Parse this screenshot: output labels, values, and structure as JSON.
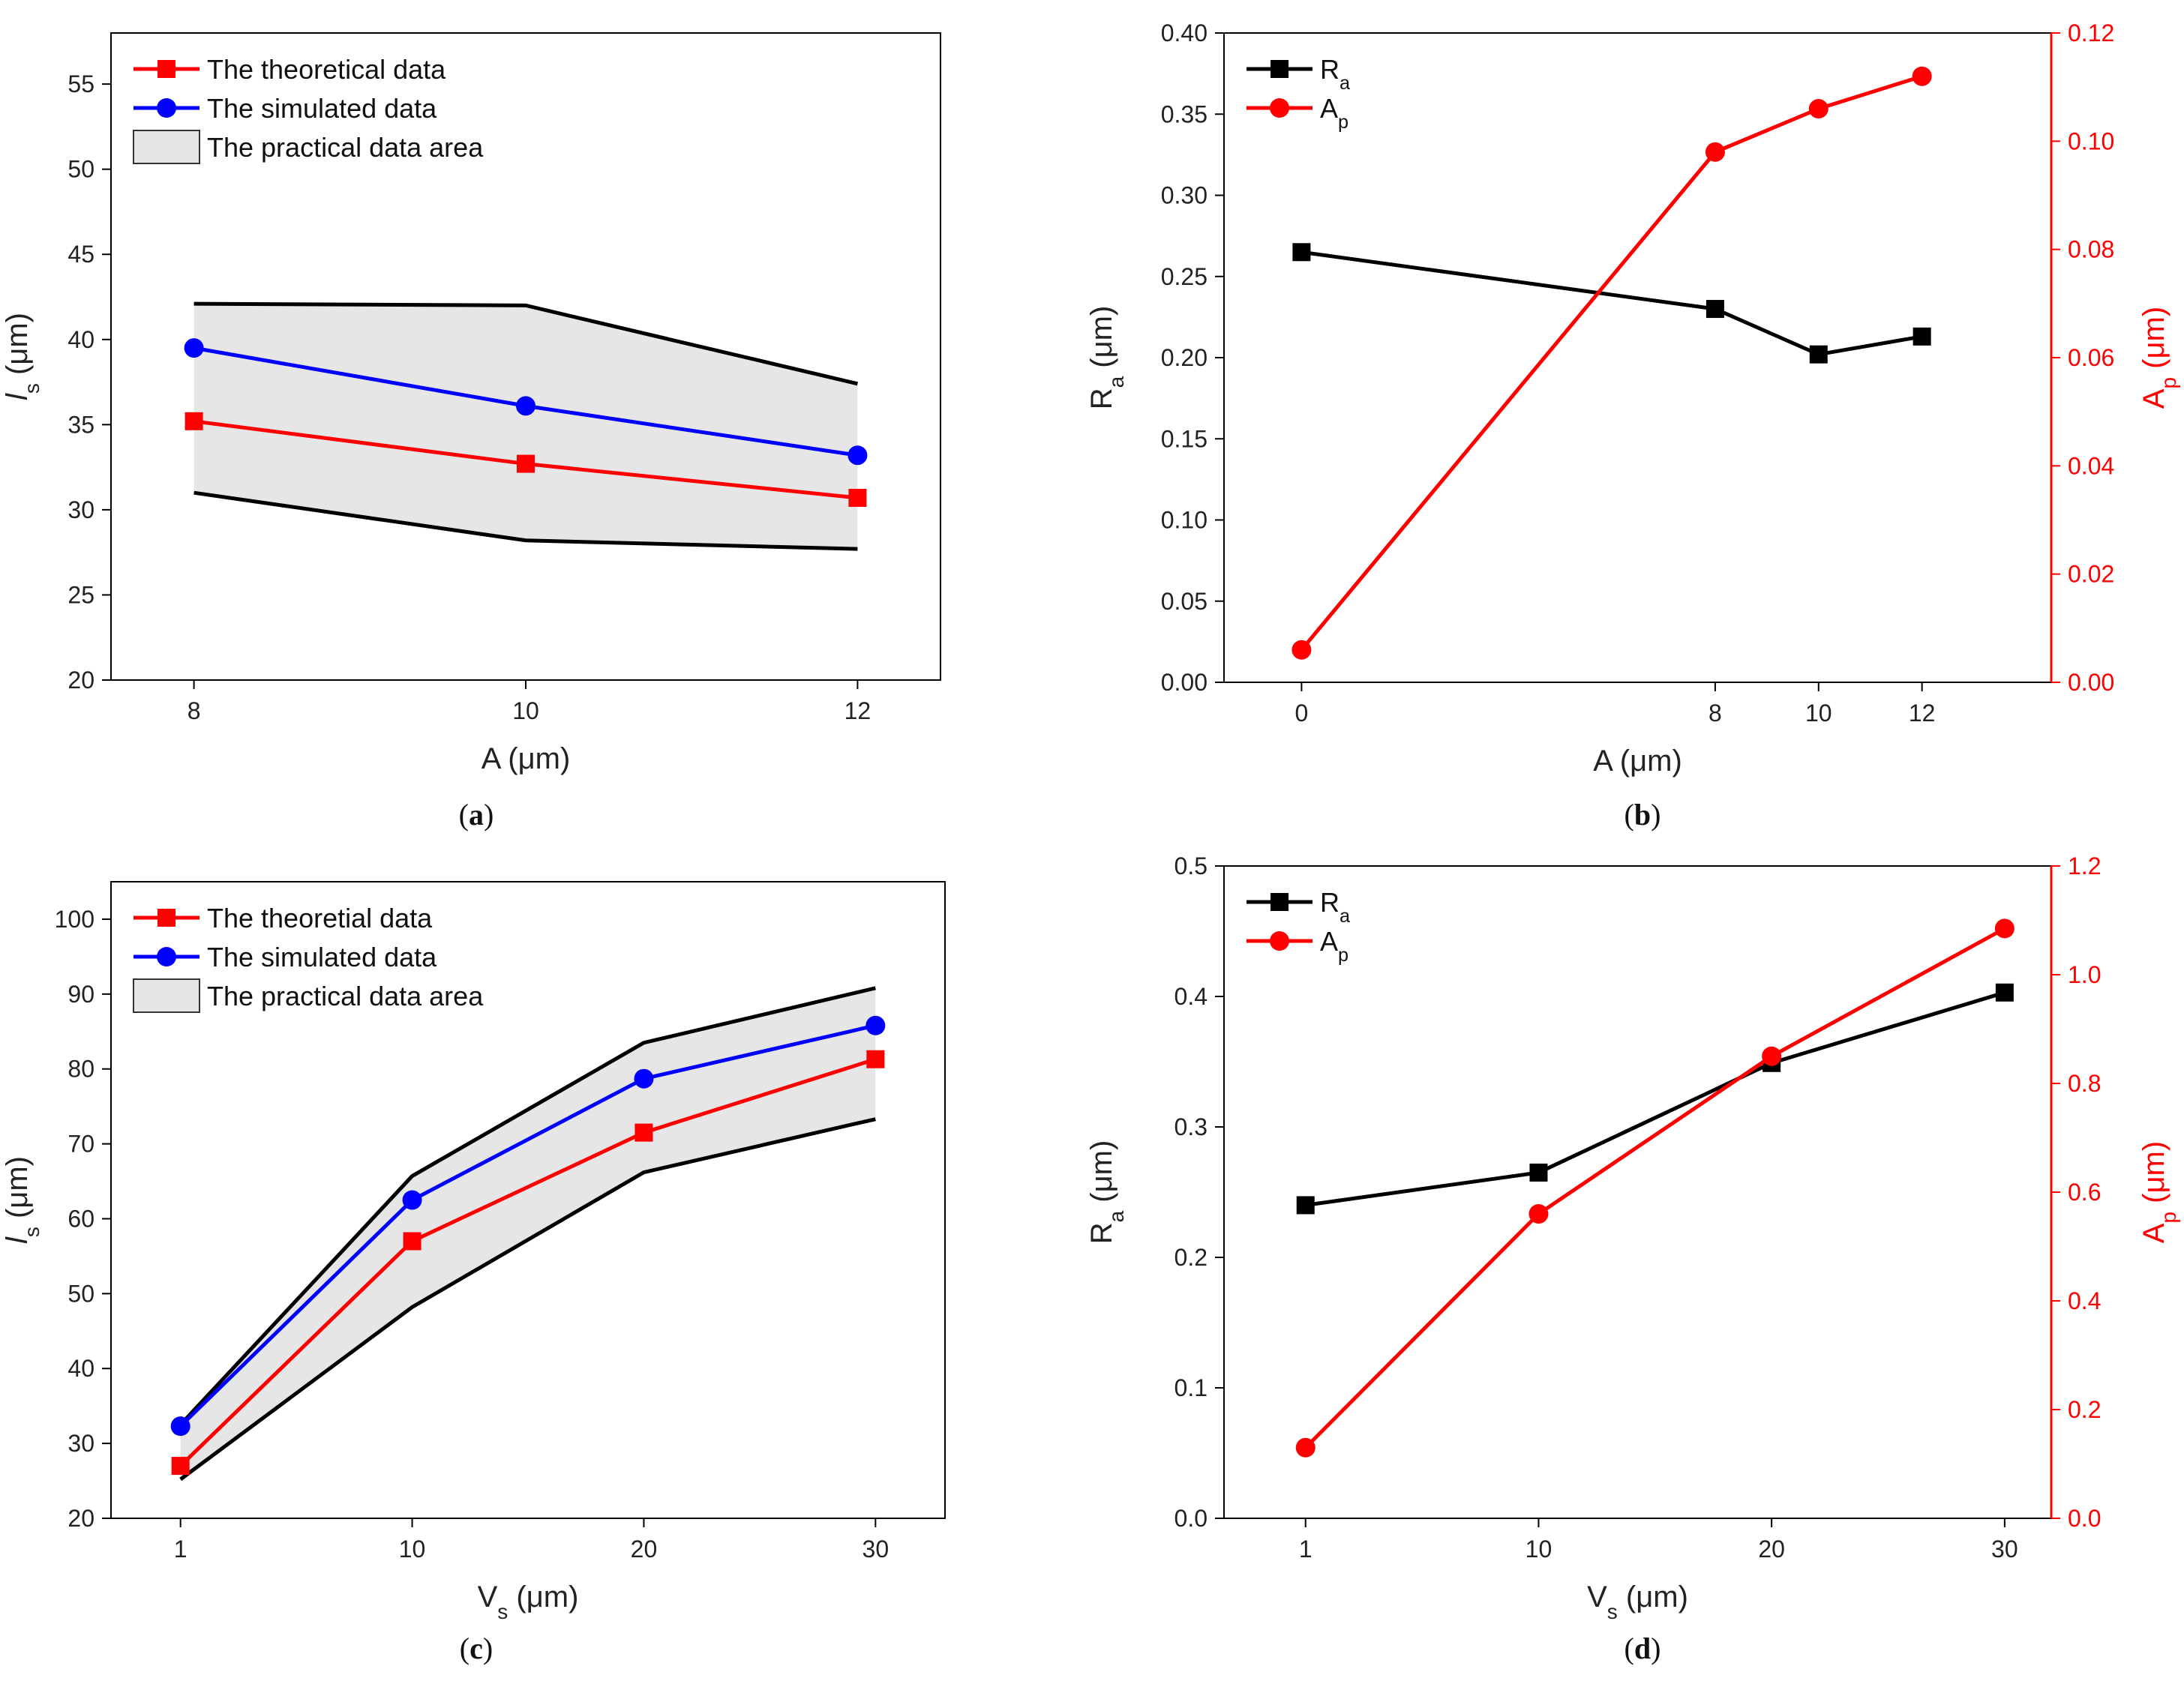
{
  "chart_data": [
    {
      "panel": "a",
      "caption": "(a)",
      "type": "line",
      "xlabel": "A (μm)",
      "ylabel": "ls (μm)",
      "ylabel_main": "l",
      "ylabel_sub": "s",
      "ylabel_unit": " (μm)",
      "categories": [
        "8",
        "10",
        "12"
      ],
      "x": [
        8,
        10,
        12
      ],
      "xlim": [
        7.5,
        12.5
      ],
      "ylim": [
        20,
        58
      ],
      "yticks": [
        20,
        25,
        30,
        35,
        40,
        45,
        50,
        55
      ],
      "series": [
        {
          "name": "The theoretical data",
          "color": "#ff0000",
          "marker": "square",
          "values": [
            35.2,
            32.7,
            30.7
          ]
        },
        {
          "name": "The simulated data",
          "color": "#0000ff",
          "marker": "circle",
          "values": [
            39.5,
            36.1,
            33.2
          ]
        }
      ],
      "band": {
        "name": "The practical data area",
        "upper": [
          42.1,
          42.0,
          37.4
        ],
        "lower": [
          31.0,
          28.2,
          27.7
        ]
      }
    },
    {
      "panel": "b",
      "caption": "(b)",
      "type": "line",
      "xlabel": "A (μm)",
      "categories": [
        "0",
        "8",
        "10",
        "12"
      ],
      "x": [
        0,
        8,
        10,
        12
      ],
      "xlim": [
        -1.5,
        14.5
      ],
      "left_axis": {
        "label": "Ra (μm)",
        "label_main": "R",
        "label_sub": "a",
        "label_unit": " (μm)",
        "ylim": [
          0,
          0.4
        ],
        "ticks": [
          "0.00",
          "0.05",
          "0.10",
          "0.15",
          "0.20",
          "0.25",
          "0.30",
          "0.35",
          "0.40"
        ]
      },
      "right_axis": {
        "label": "Ap (μm)",
        "label_main": "A",
        "label_sub": "p",
        "label_unit": " (μm)",
        "ylim": [
          0,
          0.12
        ],
        "ticks": [
          "0.00",
          "0.02",
          "0.04",
          "0.06",
          "0.08",
          "0.10",
          "0.12"
        ],
        "color": "#ff0000"
      },
      "series": [
        {
          "name": "Ra",
          "name_main": "R",
          "name_sub": "a",
          "axis": "left",
          "color": "#000000",
          "marker": "square",
          "values": [
            0.265,
            0.23,
            0.202,
            0.213
          ]
        },
        {
          "name": "Ap",
          "name_main": "A",
          "name_sub": "p",
          "axis": "right",
          "color": "#ff0000",
          "marker": "circle",
          "values": [
            0.006,
            0.098,
            0.106,
            0.112
          ]
        }
      ]
    },
    {
      "panel": "c",
      "caption": "(c)",
      "type": "line",
      "xlabel": "Vs (μm)",
      "xlabel_main": "V",
      "xlabel_sub": "s",
      "xlabel_unit": " (μm)",
      "ylabel": "ls (μm)",
      "ylabel_main": "l",
      "ylabel_sub": "s",
      "ylabel_unit": " (μm)",
      "categories": [
        "1",
        "10",
        "20",
        "30"
      ],
      "x": [
        1,
        10,
        20,
        30
      ],
      "positions": [
        0,
        1,
        2,
        3
      ],
      "xlim": [
        -0.3,
        3.3
      ],
      "ylim": [
        20,
        105
      ],
      "yticks": [
        20,
        30,
        40,
        50,
        60,
        70,
        80,
        90,
        100
      ],
      "series": [
        {
          "name": "The theoretial data",
          "color": "#ff0000",
          "marker": "square",
          "values": [
            27.0,
            57.0,
            71.5,
            81.3
          ]
        },
        {
          "name": "The simulated data",
          "color": "#0000ff",
          "marker": "circle",
          "values": [
            32.3,
            62.5,
            78.7,
            85.8
          ]
        }
      ],
      "band": {
        "name": "The practical data area",
        "upper": [
          32.5,
          65.7,
          83.5,
          90.8
        ],
        "lower": [
          25.2,
          48.2,
          66.2,
          73.3
        ]
      }
    },
    {
      "panel": "d",
      "caption": "(d)",
      "type": "line",
      "xlabel": "Vs (μm)",
      "xlabel_main": "V",
      "xlabel_sub": "s",
      "xlabel_unit": " (μm)",
      "categories": [
        "1",
        "10",
        "20",
        "30"
      ],
      "x": [
        1,
        10,
        20,
        30
      ],
      "positions": [
        0,
        1,
        2,
        3
      ],
      "xlim": [
        -0.35,
        3.2
      ],
      "left_axis": {
        "label": "Ra (μm)",
        "label_main": "R",
        "label_sub": "a",
        "label_unit": " (μm)",
        "ylim": [
          0,
          0.5
        ],
        "ticks": [
          "0.0",
          "0.1",
          "0.2",
          "0.3",
          "0.4",
          "0.5"
        ]
      },
      "right_axis": {
        "label": "Ap (μm)",
        "label_main": "A",
        "label_sub": "p",
        "label_unit": " (μm)",
        "ylim": [
          0,
          1.2
        ],
        "ticks": [
          "0.0",
          "0.2",
          "0.4",
          "0.6",
          "0.8",
          "1.0",
          "1.2"
        ],
        "color": "#ff0000"
      },
      "series": [
        {
          "name": "Ra",
          "name_main": "R",
          "name_sub": "a",
          "axis": "left",
          "color": "#000000",
          "marker": "square",
          "values": [
            0.24,
            0.265,
            0.349,
            0.403
          ]
        },
        {
          "name": "Ap",
          "name_main": "A",
          "name_sub": "p",
          "axis": "right",
          "color": "#ff0000",
          "marker": "circle",
          "values": [
            0.13,
            0.56,
            0.85,
            1.085
          ]
        }
      ]
    }
  ]
}
